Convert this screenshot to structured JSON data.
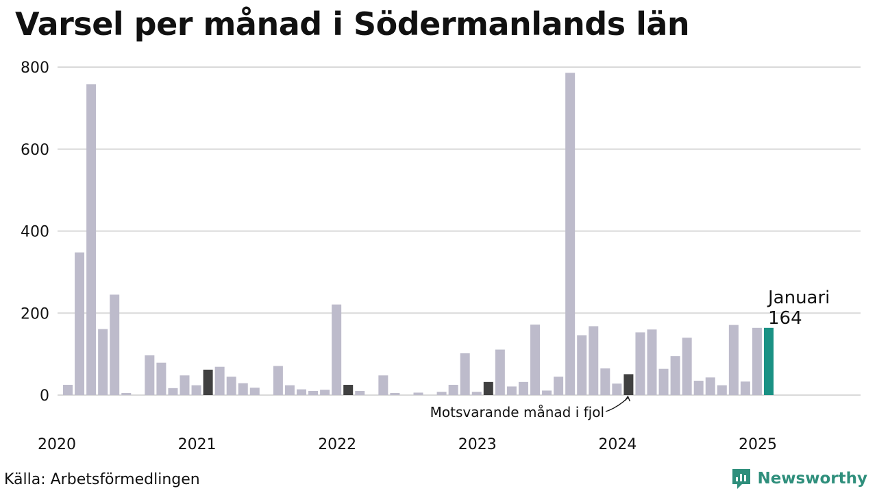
{
  "title": "Varsel per månad i Södermanlands län",
  "source": "Källa: Arbetsförmedlingen",
  "brand": {
    "name": "Newsworthy",
    "icon": "newsworthy-logo-icon"
  },
  "colors": {
    "bar": "#bdbbcb",
    "bar_previous_year": "#404040",
    "bar_current": "#1a9184",
    "grid": "#d9d9d9",
    "brand": "#2f8f7c"
  },
  "annotations": {
    "current_month": "Januari",
    "current_value": "164",
    "previous_year_label": "Motsvarande månad i fjol"
  },
  "chart_data": {
    "type": "bar",
    "title": "Varsel per månad i Södermanlands län",
    "xlabel": "",
    "ylabel": "",
    "ylim": [
      0,
      800
    ],
    "yticks": [
      0,
      200,
      400,
      600,
      800
    ],
    "xticks": [
      "2020",
      "2021",
      "2022",
      "2023",
      "2024",
      "2025"
    ],
    "grid": true,
    "x": [
      "2020-01",
      "2020-02",
      "2020-03",
      "2020-04",
      "2020-05",
      "2020-06",
      "2020-07",
      "2020-08",
      "2020-09",
      "2020-10",
      "2020-11",
      "2020-12",
      "2021-01",
      "2021-02",
      "2021-03",
      "2021-04",
      "2021-05",
      "2021-06",
      "2021-07",
      "2021-08",
      "2021-09",
      "2021-10",
      "2021-11",
      "2021-12",
      "2022-01",
      "2022-02",
      "2022-03",
      "2022-04",
      "2022-05",
      "2022-06",
      "2022-07",
      "2022-08",
      "2022-09",
      "2022-10",
      "2022-11",
      "2022-12",
      "2023-01",
      "2023-02",
      "2023-03",
      "2023-04",
      "2023-05",
      "2023-06",
      "2023-07",
      "2023-08",
      "2023-09",
      "2023-10",
      "2023-11",
      "2023-12",
      "2024-01",
      "2024-02",
      "2024-03",
      "2024-04",
      "2024-05",
      "2024-06",
      "2024-07",
      "2024-08",
      "2024-09",
      "2024-10",
      "2024-11",
      "2024-12",
      "2025-01"
    ],
    "values": [
      25,
      348,
      758,
      161,
      245,
      5,
      0,
      97,
      79,
      17,
      48,
      24,
      62,
      69,
      45,
      29,
      18,
      0,
      71,
      24,
      14,
      10,
      13,
      221,
      25,
      10,
      0,
      48,
      5,
      0,
      6,
      0,
      8,
      25,
      102,
      8,
      32,
      111,
      21,
      32,
      172,
      11,
      45,
      786,
      146,
      168,
      65,
      28,
      51,
      153,
      160,
      64,
      95,
      140,
      35,
      43,
      24,
      171,
      33,
      164,
      164
    ],
    "highlight_previous_year": [
      "2021-01",
      "2022-01",
      "2023-01",
      "2024-01"
    ],
    "highlight_current": "2025-01"
  }
}
